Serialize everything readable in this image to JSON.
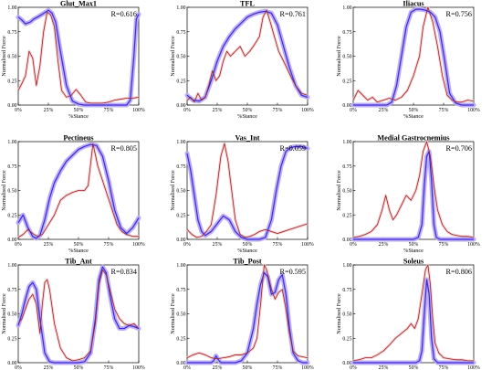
{
  "figure": {
    "tick_x": [
      "0%",
      "25%",
      "50%",
      "75%",
      "100%"
    ],
    "tick_y": [
      "0.00",
      "0.25",
      "0.50",
      "0.75",
      "1.00"
    ],
    "colors": {
      "predicted": "#3c2ad8",
      "predicted_band": "#b9a9f3",
      "emg": "#9c2323",
      "emg_band": "#f3c9cc"
    }
  },
  "chart_data": [
    {
      "type": "line",
      "title": "Glut_Max1",
      "r_label": "R=0.616",
      "xlabel": "%Stance",
      "ylabel": "Normalised Force",
      "xlim": [
        0,
        100
      ],
      "ylim": [
        0,
        1
      ],
      "series": [
        {
          "x": [
            0,
            3,
            6,
            10,
            13,
            16,
            20,
            25,
            28,
            31,
            35,
            40,
            45,
            50,
            55,
            60,
            65,
            70,
            75,
            80,
            85,
            90,
            93,
            96,
            98,
            100
          ],
          "y": [
            0.9,
            0.87,
            0.83,
            0.85,
            0.88,
            0.9,
            0.93,
            0.97,
            0.94,
            0.85,
            0.55,
            0.2,
            0.04,
            0.01,
            0,
            0,
            0,
            0,
            0,
            0,
            0,
            0,
            0.05,
            0.5,
            0.88,
            0.93
          ]
        },
        {
          "x": [
            0,
            3,
            6,
            9,
            12,
            15,
            18,
            21,
            24,
            27,
            30,
            33,
            36,
            40,
            44,
            48,
            52,
            56,
            60,
            65,
            70,
            75,
            80,
            85,
            90,
            95,
            100
          ],
          "y": [
            0.15,
            0.22,
            0.3,
            0.55,
            0.48,
            0.2,
            0.4,
            0.75,
            0.95,
            0.92,
            0.8,
            0.45,
            0.15,
            0.08,
            0.1,
            0.16,
            0.1,
            0.03,
            0.02,
            0.02,
            0.02,
            0.03,
            0.05,
            0.06,
            0.07,
            0.07,
            0.08
          ]
        }
      ]
    },
    {
      "type": "line",
      "title": "TFL",
      "r_label": "R=0.761",
      "xlabel": "%Stance",
      "ylabel": "Normalised Force",
      "xlim": [
        0,
        100
      ],
      "ylim": [
        0,
        1
      ],
      "series": [
        {
          "x": [
            0,
            5,
            10,
            15,
            20,
            25,
            30,
            35,
            40,
            45,
            50,
            55,
            60,
            65,
            70,
            75,
            80,
            85,
            90,
            95,
            100
          ],
          "y": [
            0.1,
            0.05,
            0.04,
            0.08,
            0.25,
            0.45,
            0.6,
            0.7,
            0.78,
            0.84,
            0.9,
            0.93,
            0.95,
            0.96,
            0.94,
            0.82,
            0.6,
            0.38,
            0.2,
            0.1,
            0.08
          ]
        },
        {
          "x": [
            0,
            3,
            6,
            9,
            12,
            15,
            18,
            21,
            24,
            27,
            30,
            33,
            36,
            40,
            44,
            48,
            52,
            56,
            60,
            63,
            66,
            69,
            72,
            76,
            80,
            85,
            90,
            95,
            100
          ],
          "y": [
            0.05,
            0.08,
            0.03,
            0.12,
            0.05,
            0.08,
            0.2,
            0.35,
            0.25,
            0.3,
            0.45,
            0.55,
            0.5,
            0.55,
            0.6,
            0.5,
            0.55,
            0.62,
            0.7,
            0.9,
            0.97,
            0.85,
            0.72,
            0.55,
            0.45,
            0.32,
            0.2,
            0.12,
            0.1
          ]
        }
      ]
    },
    {
      "type": "line",
      "title": "Iliacus",
      "r_label": "R=0.756",
      "xlabel": "%Stance",
      "ylabel": "Normalised Force",
      "xlim": [
        0,
        100
      ],
      "ylim": [
        0,
        1
      ],
      "series": [
        {
          "x": [
            0,
            10,
            20,
            28,
            32,
            36,
            40,
            44,
            48,
            52,
            56,
            60,
            64,
            68,
            72,
            76,
            80,
            85,
            90,
            100
          ],
          "y": [
            0,
            0,
            0,
            0,
            0.03,
            0.2,
            0.5,
            0.8,
            0.95,
            0.98,
            0.98,
            0.97,
            0.95,
            0.9,
            0.75,
            0.45,
            0.12,
            0.02,
            0,
            0
          ]
        },
        {
          "x": [
            0,
            4,
            8,
            12,
            16,
            20,
            25,
            30,
            35,
            40,
            45,
            50,
            55,
            58,
            62,
            66,
            70,
            74,
            78,
            82,
            86,
            90,
            95,
            100
          ],
          "y": [
            0.05,
            0.15,
            0.1,
            0.05,
            0.08,
            0.03,
            0.05,
            0.07,
            0.05,
            0.08,
            0.15,
            0.3,
            0.5,
            0.8,
            1.0,
            0.85,
            0.6,
            0.3,
            0.1,
            0.05,
            0.03,
            0.03,
            0.05,
            0.04
          ]
        }
      ]
    },
    {
      "type": "line",
      "title": "Pectineus",
      "r_label": "R=0.805",
      "xlabel": "%Stance",
      "ylabel": "Normalised Force",
      "xlim": [
        0,
        100
      ],
      "ylim": [
        0,
        1
      ],
      "series": [
        {
          "x": [
            0,
            4,
            8,
            12,
            15,
            18,
            22,
            26,
            30,
            35,
            40,
            45,
            50,
            55,
            60,
            65,
            70,
            75,
            80,
            85,
            90,
            95,
            100
          ],
          "y": [
            0.17,
            0.25,
            0.12,
            0.03,
            0.01,
            0.04,
            0.2,
            0.42,
            0.58,
            0.7,
            0.8,
            0.86,
            0.92,
            0.95,
            0.97,
            0.96,
            0.85,
            0.6,
            0.3,
            0.12,
            0.06,
            0.12,
            0.22
          ]
        },
        {
          "x": [
            0,
            4,
            8,
            12,
            16,
            20,
            25,
            30,
            35,
            40,
            45,
            50,
            55,
            58,
            62,
            66,
            70,
            74,
            78,
            82,
            86,
            90,
            95,
            100
          ],
          "y": [
            0.02,
            0.05,
            0.1,
            0.06,
            0.03,
            0.05,
            0.15,
            0.25,
            0.4,
            0.45,
            0.48,
            0.5,
            0.5,
            0.55,
            0.98,
            0.75,
            0.6,
            0.45,
            0.3,
            0.15,
            0.08,
            0.05,
            0.03,
            0.03
          ]
        }
      ]
    },
    {
      "type": "line",
      "title": "Vas_Int",
      "r_label": "R=0.059",
      "xlabel": "%Stance",
      "ylabel": "Normalised Force",
      "xlim": [
        0,
        100
      ],
      "ylim": [
        0,
        1
      ],
      "series": [
        {
          "x": [
            0,
            3,
            6,
            9,
            12,
            15,
            20,
            25,
            30,
            35,
            40,
            45,
            50,
            55,
            60,
            65,
            70,
            74,
            78,
            82,
            86,
            90,
            95,
            100
          ],
          "y": [
            0.88,
            0.7,
            0.45,
            0.2,
            0.08,
            0.04,
            0.08,
            0.16,
            0.24,
            0.2,
            0.08,
            0.02,
            0,
            0,
            0,
            0.02,
            0.2,
            0.5,
            0.75,
            0.9,
            0.94,
            0.95,
            0.95,
            0.93
          ]
        },
        {
          "x": [
            0,
            4,
            8,
            12,
            16,
            20,
            24,
            28,
            31,
            34,
            37,
            40,
            44,
            48,
            52,
            56,
            60,
            65,
            70,
            75,
            80,
            85,
            90,
            95,
            100
          ],
          "y": [
            0.1,
            0.05,
            0.02,
            0.03,
            0.08,
            0.15,
            0.45,
            0.85,
            0.98,
            0.8,
            0.5,
            0.2,
            0.05,
            0.02,
            0.03,
            0.05,
            0.08,
            0.1,
            0.08,
            0.06,
            0.08,
            0.1,
            0.12,
            0.14,
            0.16
          ]
        }
      ]
    },
    {
      "type": "line",
      "title": "Medial Gastrocnemius",
      "r_label": "R=0.706",
      "xlabel": "%Stance",
      "ylabel": "Normalised Force",
      "xlim": [
        0,
        100
      ],
      "ylim": [
        0,
        1
      ],
      "series": [
        {
          "x": [
            0,
            40,
            50,
            54,
            57,
            59,
            61,
            63,
            65,
            67,
            69,
            72,
            80,
            100
          ],
          "y": [
            0,
            0,
            0,
            0.02,
            0.15,
            0.55,
            0.85,
            0.9,
            0.6,
            0.15,
            0.02,
            0,
            0,
            0
          ]
        },
        {
          "x": [
            0,
            5,
            10,
            15,
            20,
            24,
            27,
            30,
            33,
            36,
            40,
            44,
            48,
            52,
            55,
            58,
            61,
            64,
            67,
            70,
            74,
            78,
            82,
            86,
            90,
            95,
            100
          ],
          "y": [
            0.02,
            0.03,
            0.05,
            0.08,
            0.15,
            0.3,
            0.45,
            0.3,
            0.2,
            0.25,
            0.35,
            0.45,
            0.4,
            0.5,
            0.65,
            0.9,
            1.0,
            0.85,
            0.55,
            0.3,
            0.15,
            0.08,
            0.05,
            0.04,
            0.03,
            0.03,
            0.02
          ]
        }
      ]
    },
    {
      "type": "line",
      "title": "Tib_Ant",
      "r_label": "R=0.834",
      "xlabel": "%Stance",
      "ylabel": "Normalised Force",
      "xlim": [
        0,
        100
      ],
      "ylim": [
        0,
        1
      ],
      "series": [
        {
          "x": [
            0,
            3,
            6,
            9,
            12,
            15,
            18,
            22,
            26,
            30,
            35,
            40,
            45,
            50,
            55,
            60,
            64,
            67,
            70,
            73,
            76,
            80,
            84,
            88,
            92,
            96,
            100
          ],
          "y": [
            0.38,
            0.5,
            0.65,
            0.78,
            0.82,
            0.75,
            0.45,
            0.1,
            0.01,
            0,
            0,
            0,
            0,
            0,
            0.01,
            0.1,
            0.45,
            0.85,
            0.98,
            0.92,
            0.7,
            0.45,
            0.35,
            0.35,
            0.38,
            0.37,
            0.35
          ]
        },
        {
          "x": [
            0,
            3,
            6,
            9,
            12,
            15,
            18,
            20,
            22,
            24,
            26,
            30,
            35,
            40,
            45,
            50,
            55,
            60,
            64,
            67,
            70,
            73,
            76,
            80,
            84,
            88,
            92,
            96,
            100
          ],
          "y": [
            0.4,
            0.45,
            0.55,
            0.65,
            0.7,
            0.6,
            0.3,
            0.6,
            0.82,
            0.85,
            0.75,
            0.4,
            0.15,
            0.05,
            0.02,
            0.03,
            0.05,
            0.12,
            0.4,
            0.8,
            0.95,
            0.9,
            0.75,
            0.55,
            0.45,
            0.4,
            0.38,
            0.4,
            0.35
          ]
        }
      ]
    },
    {
      "type": "line",
      "title": "Tib_Post",
      "r_label": "R=0.595",
      "xlabel": "%Stance",
      "ylabel": "Normalised Force",
      "xlim": [
        0,
        100
      ],
      "ylim": [
        0,
        1
      ],
      "series": [
        {
          "x": [
            0,
            5,
            10,
            15,
            20,
            22,
            24,
            26,
            28,
            30,
            35,
            40,
            45,
            50,
            55,
            58,
            61,
            64,
            67,
            70,
            73,
            76,
            79,
            82,
            85,
            88,
            92,
            96,
            100
          ],
          "y": [
            0,
            0,
            0,
            0,
            0,
            0.02,
            0.07,
            0.03,
            0,
            0,
            0,
            0,
            0.02,
            0.1,
            0.35,
            0.6,
            0.8,
            0.92,
            0.88,
            0.7,
            0.72,
            0.85,
            0.9,
            0.7,
            0.35,
            0.1,
            0.02,
            0,
            0
          ]
        },
        {
          "x": [
            0,
            5,
            10,
            15,
            20,
            25,
            30,
            35,
            40,
            45,
            50,
            55,
            58,
            61,
            64,
            66,
            68,
            70,
            73,
            76,
            79,
            82,
            85,
            88,
            92,
            96,
            100
          ],
          "y": [
            0.05,
            0.08,
            0.1,
            0.08,
            0.05,
            0.04,
            0.05,
            0.06,
            0.08,
            0.08,
            0.1,
            0.15,
            0.25,
            0.6,
            1.0,
            0.95,
            0.85,
            0.75,
            0.65,
            0.72,
            0.75,
            0.55,
            0.3,
            0.12,
            0.07,
            0.06,
            0.05
          ]
        }
      ]
    },
    {
      "type": "line",
      "title": "Soleus",
      "r_label": "R=0.806",
      "xlabel": "%Stance",
      "ylabel": "Normalised Force",
      "xlim": [
        0,
        100
      ],
      "ylim": [
        0,
        1
      ],
      "series": [
        {
          "x": [
            0,
            40,
            52,
            55,
            57,
            59,
            61,
            63,
            65,
            67,
            70,
            80,
            100
          ],
          "y": [
            0,
            0,
            0,
            0.02,
            0.12,
            0.5,
            0.85,
            0.7,
            0.25,
            0.04,
            0,
            0,
            0
          ]
        },
        {
          "x": [
            0,
            5,
            10,
            15,
            20,
            25,
            30,
            35,
            40,
            45,
            48,
            51,
            54,
            57,
            60,
            62,
            64,
            66,
            68,
            71,
            75,
            80,
            85,
            90,
            95,
            100
          ],
          "y": [
            0.02,
            0.03,
            0.05,
            0.05,
            0.08,
            0.12,
            0.18,
            0.25,
            0.3,
            0.35,
            0.4,
            0.35,
            0.45,
            0.7,
            0.95,
            1.0,
            0.8,
            0.45,
            0.2,
            0.1,
            0.05,
            0.04,
            0.03,
            0.03,
            0.02,
            0.02
          ]
        }
      ]
    }
  ]
}
